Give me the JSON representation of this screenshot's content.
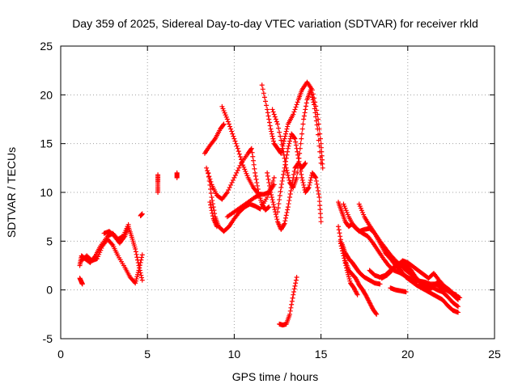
{
  "chart_data": {
    "type": "scatter",
    "title": "Day 359 of 2025, Sidereal Day-to-day VTEC variation (SDTVAR) for receiver rkld",
    "xlabel": "GPS time / hours",
    "ylabel": "SDTVAR / TECUs",
    "xlim": [
      0,
      25
    ],
    "ylim": [
      -5,
      25
    ],
    "xticks": [
      0,
      5,
      10,
      15,
      20,
      25
    ],
    "yticks": [
      -5,
      0,
      5,
      10,
      15,
      20,
      25
    ],
    "grid": true,
    "marker": "+",
    "color": "#ff0000",
    "tracks": [
      [
        [
          1.1,
          1.2
        ],
        [
          1.2,
          0.8
        ],
        [
          1.25,
          0.6
        ]
      ],
      [
        [
          1.1,
          2.5
        ],
        [
          1.2,
          3.5
        ],
        [
          1.4,
          3.2
        ],
        [
          1.7,
          2.8
        ],
        [
          2.0,
          3.5
        ],
        [
          2.3,
          4.5
        ],
        [
          2.7,
          5.5
        ],
        [
          3.0,
          5.8
        ],
        [
          3.3,
          5.2
        ],
        [
          3.6,
          5.5
        ],
        [
          3.9,
          6.7
        ]
      ],
      [
        [
          1.2,
          3.0
        ],
        [
          1.5,
          3.5
        ],
        [
          1.8,
          3.0
        ],
        [
          2.1,
          3.2
        ],
        [
          2.4,
          4.5
        ],
        [
          2.7,
          5.2
        ],
        [
          3.0,
          4.6
        ],
        [
          3.3,
          3.5
        ],
        [
          3.7,
          2.3
        ],
        [
          4.0,
          1.3
        ],
        [
          4.3,
          0.7
        ],
        [
          4.5,
          2.0
        ],
        [
          4.7,
          3.6
        ]
      ],
      [
        [
          2.5,
          5.8
        ],
        [
          2.8,
          6.0
        ],
        [
          3.1,
          5.5
        ],
        [
          3.4,
          4.8
        ],
        [
          3.7,
          5.5
        ],
        [
          3.9,
          6.5
        ],
        [
          4.1,
          5.4
        ],
        [
          4.3,
          4.2
        ],
        [
          4.5,
          2.5
        ],
        [
          4.7,
          1.0
        ]
      ],
      [
        [
          4.6,
          7.6
        ],
        [
          4.7,
          7.8
        ]
      ],
      [
        [
          5.6,
          11.8
        ],
        [
          5.6,
          11.0
        ],
        [
          5.6,
          10.0
        ]
      ],
      [
        [
          6.7,
          12.0
        ],
        [
          6.7,
          11.5
        ]
      ],
      [
        [
          8.3,
          14.0
        ],
        [
          8.6,
          14.8
        ],
        [
          8.9,
          15.5
        ],
        [
          9.2,
          16.5
        ],
        [
          9.4,
          17.0
        ]
      ],
      [
        [
          8.4,
          12.5
        ],
        [
          8.7,
          10.8
        ],
        [
          9.0,
          9.7
        ],
        [
          9.3,
          9.3
        ],
        [
          9.6,
          10.0
        ],
        [
          10.0,
          11.5
        ],
        [
          10.4,
          13.0
        ],
        [
          10.8,
          14.0
        ],
        [
          11.0,
          14.5
        ],
        [
          11.2,
          12.0
        ],
        [
          11.4,
          10.0
        ],
        [
          11.6,
          8.8
        ],
        [
          11.8,
          8.2
        ],
        [
          12.0,
          8.5
        ]
      ],
      [
        [
          8.5,
          12.0
        ],
        [
          8.7,
          9.5
        ],
        [
          8.9,
          7.5
        ],
        [
          9.1,
          6.5
        ],
        [
          9.4,
          6.0
        ],
        [
          9.7,
          6.5
        ],
        [
          10.0,
          7.3
        ],
        [
          10.3,
          8.0
        ],
        [
          10.6,
          8.5
        ],
        [
          10.9,
          8.8
        ],
        [
          11.2,
          8.6
        ],
        [
          11.5,
          8.3
        ],
        [
          11.9,
          9.5
        ],
        [
          12.3,
          11.5
        ]
      ],
      [
        [
          8.6,
          9.0
        ],
        [
          8.8,
          7.3
        ],
        [
          9.0,
          6.5
        ]
      ],
      [
        [
          9.3,
          18.8
        ],
        [
          9.6,
          17.5
        ],
        [
          9.9,
          16.0
        ],
        [
          10.2,
          14.5
        ],
        [
          10.5,
          12.8
        ],
        [
          10.8,
          11.5
        ],
        [
          11.1,
          10.5
        ],
        [
          11.4,
          9.8
        ],
        [
          11.7,
          9.8
        ],
        [
          12.0,
          10.0
        ],
        [
          12.3,
          10.8
        ]
      ],
      [
        [
          9.6,
          7.5
        ],
        [
          10.0,
          8.0
        ],
        [
          10.4,
          8.5
        ],
        [
          10.8,
          9.0
        ],
        [
          11.2,
          9.5
        ],
        [
          11.5,
          9.8
        ]
      ],
      [
        [
          11.6,
          21.0
        ],
        [
          11.9,
          18.5
        ],
        [
          12.1,
          16.5
        ],
        [
          12.3,
          15.0
        ],
        [
          12.5,
          14.5
        ],
        [
          12.7,
          14.0
        ],
        [
          12.9,
          15.5
        ],
        [
          13.1,
          17.0
        ],
        [
          13.4,
          18.0
        ],
        [
          13.7,
          19.5
        ],
        [
          13.9,
          20.5
        ],
        [
          14.2,
          21.3
        ],
        [
          14.5,
          20.5
        ],
        [
          14.8,
          18.0
        ],
        [
          15.0,
          15.0
        ],
        [
          15.1,
          12.5
        ]
      ],
      [
        [
          11.9,
          12.0
        ],
        [
          12.1,
          10.0
        ],
        [
          12.3,
          8.5
        ],
        [
          12.5,
          7.0
        ],
        [
          12.7,
          6.2
        ],
        [
          12.9,
          6.8
        ],
        [
          13.1,
          8.5
        ],
        [
          13.3,
          10.5
        ],
        [
          13.5,
          12.5
        ],
        [
          13.7,
          13.0
        ],
        [
          13.9,
          12.5
        ],
        [
          14.1,
          13.0
        ]
      ],
      [
        [
          12.2,
          18.5
        ],
        [
          12.5,
          17.0
        ],
        [
          12.8,
          14.5
        ],
        [
          13.0,
          12.5
        ],
        [
          13.2,
          11.0
        ],
        [
          13.4,
          10.5
        ],
        [
          13.6,
          11.5
        ],
        [
          13.8,
          14.5
        ],
        [
          14.0,
          17.5
        ],
        [
          14.2,
          19.5
        ],
        [
          14.4,
          20.5
        ],
        [
          14.6,
          19.0
        ],
        [
          14.8,
          16.5
        ],
        [
          15.0,
          13.0
        ]
      ],
      [
        [
          12.5,
          8.0
        ],
        [
          12.7,
          10.5
        ],
        [
          12.9,
          12.5
        ],
        [
          13.1,
          14.5
        ],
        [
          13.3,
          16.0
        ],
        [
          13.5,
          15.5
        ],
        [
          13.7,
          13.5
        ],
        [
          13.9,
          11.5
        ],
        [
          14.1,
          10.0
        ],
        [
          14.3,
          10.5
        ],
        [
          14.5,
          12.0
        ],
        [
          14.7,
          11.5
        ],
        [
          14.9,
          9.5
        ],
        [
          15.0,
          7.0
        ]
      ],
      [
        [
          12.6,
          -3.5
        ],
        [
          12.8,
          -3.6
        ],
        [
          13.0,
          -3.5
        ],
        [
          13.2,
          -2.5
        ],
        [
          13.4,
          -0.5
        ],
        [
          13.6,
          1.3
        ]
      ],
      [
        [
          16.0,
          9.0
        ],
        [
          16.2,
          8.0
        ],
        [
          16.4,
          7.0
        ],
        [
          16.6,
          6.5
        ],
        [
          16.8,
          6.8
        ],
        [
          17.1,
          6.2
        ],
        [
          17.4,
          5.8
        ],
        [
          17.7,
          5.5
        ],
        [
          18.0,
          4.8
        ],
        [
          18.3,
          4.0
        ],
        [
          18.6,
          3.2
        ],
        [
          18.9,
          2.5
        ],
        [
          19.2,
          2.0
        ],
        [
          19.5,
          1.8
        ],
        [
          19.8,
          1.5
        ],
        [
          20.1,
          1.2
        ],
        [
          20.4,
          1.0
        ],
        [
          20.7,
          0.9
        ],
        [
          21.0,
          0.8
        ],
        [
          21.3,
          0.6
        ],
        [
          21.6,
          0.6
        ],
        [
          21.9,
          0.3
        ],
        [
          22.2,
          0.0
        ],
        [
          22.5,
          -0.3
        ],
        [
          22.8,
          -0.5
        ]
      ],
      [
        [
          16.0,
          6.5
        ],
        [
          16.2,
          4.5
        ],
        [
          16.4,
          3.0
        ],
        [
          16.6,
          2.0
        ],
        [
          16.8,
          1.6
        ],
        [
          17.0,
          1.2
        ],
        [
          17.2,
          0.5
        ],
        [
          17.4,
          0.0
        ],
        [
          17.6,
          -0.6
        ],
        [
          17.8,
          -1.3
        ],
        [
          18.0,
          -2.0
        ],
        [
          18.2,
          -2.5
        ]
      ],
      [
        [
          16.1,
          5.0
        ],
        [
          16.3,
          3.5
        ],
        [
          16.5,
          2.0
        ],
        [
          16.7,
          0.7
        ],
        [
          16.9,
          0.2
        ],
        [
          17.1,
          -0.5
        ]
      ],
      [
        [
          16.2,
          4.8
        ],
        [
          16.4,
          3.8
        ],
        [
          16.6,
          3.2
        ],
        [
          16.8,
          2.8
        ],
        [
          17.0,
          2.3
        ],
        [
          17.2,
          1.8
        ],
        [
          17.5,
          1.3
        ],
        [
          17.8,
          1.0
        ],
        [
          18.1,
          0.7
        ],
        [
          18.4,
          0.6
        ]
      ],
      [
        [
          16.3,
          8.8
        ],
        [
          16.6,
          7.5
        ],
        [
          16.9,
          6.5
        ],
        [
          17.2,
          6.0
        ],
        [
          17.5,
          6.2
        ],
        [
          17.8,
          6.3
        ],
        [
          18.1,
          5.8
        ],
        [
          18.4,
          5.0
        ],
        [
          18.7,
          4.3
        ],
        [
          19.0,
          3.6
        ],
        [
          19.3,
          3.0
        ],
        [
          19.6,
          2.5
        ],
        [
          19.9,
          2.0
        ],
        [
          20.2,
          1.6
        ],
        [
          20.5,
          1.2
        ],
        [
          20.8,
          0.7
        ],
        [
          21.1,
          0.3
        ],
        [
          21.4,
          0.3
        ],
        [
          21.7,
          0.0
        ],
        [
          22.0,
          -0.2
        ],
        [
          22.3,
          -0.7
        ],
        [
          22.6,
          -1.3
        ],
        [
          22.9,
          -1.7
        ]
      ],
      [
        [
          17.2,
          8.8
        ],
        [
          17.5,
          7.5
        ],
        [
          17.8,
          6.6
        ],
        [
          18.1,
          5.8
        ],
        [
          18.4,
          4.8
        ],
        [
          18.7,
          3.8
        ],
        [
          19.0,
          3.2
        ],
        [
          19.3,
          2.5
        ],
        [
          19.6,
          2.0
        ],
        [
          19.9,
          1.3
        ],
        [
          20.2,
          0.9
        ],
        [
          20.5,
          0.5
        ],
        [
          20.8,
          0.2
        ],
        [
          21.1,
          -0.1
        ],
        [
          21.4,
          -0.4
        ],
        [
          21.7,
          -0.7
        ],
        [
          22.0,
          -1.0
        ],
        [
          22.3,
          -1.6
        ],
        [
          22.6,
          -2.1
        ],
        [
          22.9,
          -2.3
        ]
      ],
      [
        [
          17.8,
          2.0
        ],
        [
          18.1,
          1.5
        ],
        [
          18.4,
          1.3
        ],
        [
          18.7,
          1.5
        ],
        [
          19.0,
          2.0
        ],
        [
          19.3,
          2.5
        ],
        [
          19.6,
          2.8
        ],
        [
          19.9,
          2.5
        ],
        [
          20.2,
          2.0
        ],
        [
          20.5,
          1.2
        ],
        [
          20.8,
          0.5
        ],
        [
          21.1,
          0.0
        ],
        [
          21.4,
          0.2
        ],
        [
          21.7,
          0.8
        ],
        [
          22.0,
          0.5
        ],
        [
          22.3,
          0.0
        ],
        [
          22.6,
          -0.5
        ],
        [
          22.9,
          -1.0
        ]
      ],
      [
        [
          18.5,
          1.2
        ],
        [
          18.8,
          1.5
        ],
        [
          19.1,
          2.0
        ],
        [
          19.4,
          2.5
        ],
        [
          19.7,
          3.0
        ],
        [
          20.0,
          2.8
        ],
        [
          20.3,
          2.4
        ],
        [
          20.6,
          2.0
        ],
        [
          20.9,
          1.6
        ],
        [
          21.2,
          1.2
        ],
        [
          21.5,
          1.7
        ],
        [
          21.8,
          1.0
        ],
        [
          22.1,
          0.4
        ],
        [
          22.4,
          0.0
        ],
        [
          22.7,
          -0.5
        ],
        [
          23.0,
          -0.8
        ]
      ],
      [
        [
          19.0,
          0.2
        ],
        [
          19.3,
          0.0
        ],
        [
          19.6,
          -0.1
        ],
        [
          19.9,
          -0.2
        ]
      ]
    ]
  }
}
